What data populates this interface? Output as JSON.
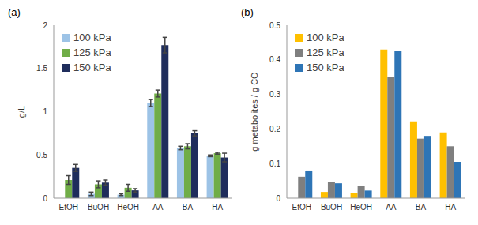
{
  "chart_data": [
    {
      "type": "bar",
      "title": "(a)",
      "y_label": "g/L",
      "categories": [
        "EtOH",
        "BuOH",
        "HeOH",
        "AA",
        "BA",
        "HA"
      ],
      "series": [
        {
          "name": "100 kPa",
          "color": "#9dc3e6",
          "values": [
            0,
            0.05,
            0.04,
            1.1,
            0.58,
            0.49
          ],
          "error": [
            0,
            0.02,
            0.01,
            0.04,
            0.02,
            0.01
          ]
        },
        {
          "name": "125 kPa",
          "color": "#70ad47",
          "values": [
            0.21,
            0.16,
            0.12,
            1.21,
            0.6,
            0.52
          ],
          "error": [
            0.05,
            0.04,
            0.04,
            0.04,
            0.03,
            0.01
          ]
        },
        {
          "name": "150 kPa",
          "color": "#1f2d5c",
          "values": [
            0.35,
            0.18,
            0.09,
            1.77,
            0.75,
            0.47
          ],
          "error": [
            0.04,
            0.03,
            0.02,
            0.09,
            0.03,
            0.05
          ]
        }
      ],
      "ylim": [
        0,
        2
      ],
      "yticks": [
        0,
        0.5,
        1,
        1.5,
        2
      ],
      "grid": false,
      "legend": "upper left"
    },
    {
      "type": "bar",
      "title": "(b)",
      "y_label": "g metabolites / g CO",
      "categories": [
        "EtOH",
        "BuOH",
        "HeOH",
        "AA",
        "BA",
        "HA"
      ],
      "series": [
        {
          "name": "100 kPa",
          "color": "#ffc000",
          "values": [
            0,
            0.018,
            0.015,
            0.43,
            0.222,
            0.19
          ]
        },
        {
          "name": "125 kPa",
          "color": "#7f7f7f",
          "values": [
            0.062,
            0.047,
            0.035,
            0.35,
            0.172,
            0.15
          ]
        },
        {
          "name": "150 kPa",
          "color": "#2e75b6",
          "values": [
            0.08,
            0.043,
            0.022,
            0.425,
            0.18,
            0.105
          ]
        }
      ],
      "ylim": [
        0,
        0.5
      ],
      "yticks": [
        0,
        0.1,
        0.2,
        0.3,
        0.4,
        0.5
      ],
      "grid": false,
      "legend": "upper left"
    }
  ]
}
